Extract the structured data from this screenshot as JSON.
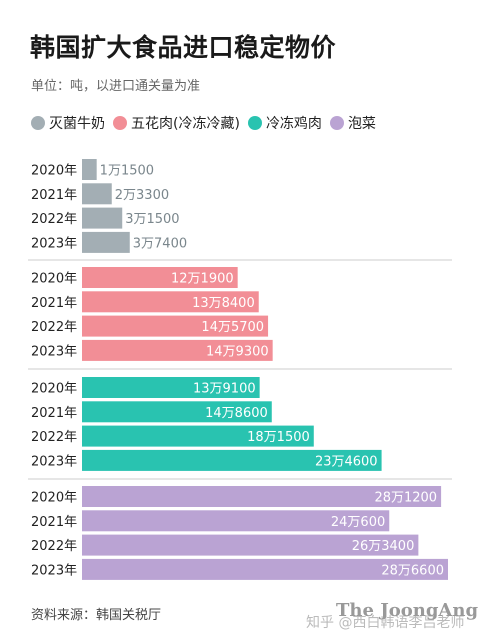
{
  "header": {
    "title": "韩国扩大食品进口稳定物价",
    "unit": "单位：吨，以进口通关量为准"
  },
  "colors": {
    "milk": "#a3aeb4",
    "pork": "#f28e96",
    "chicken": "#29c3b0",
    "kimchi": "#baa3d3",
    "label_on_bar": "#ffffff",
    "label_off_bar": "#7a868c",
    "separator": "#cccccc"
  },
  "chart_data": {
    "type": "bar",
    "orientation": "horizontal",
    "categories": [
      "2020年",
      "2021年",
      "2022年",
      "2023年"
    ],
    "series": [
      {
        "name": "灭菌牛奶",
        "color_key": "milk",
        "values": [
          11500,
          23300,
          31500,
          37400
        ],
        "labels": [
          "1万1500",
          "2万3300",
          "3万1500",
          "3万7400"
        ]
      },
      {
        "name": "五花肉(冷冻冷藏)",
        "color_key": "pork",
        "values": [
          121900,
          138400,
          145700,
          149300
        ],
        "labels": [
          "12万1900",
          "13万8400",
          "14万5700",
          "14万9300"
        ]
      },
      {
        "name": "冷冻鸡肉",
        "color_key": "chicken",
        "values": [
          139100,
          148600,
          181500,
          234600
        ],
        "labels": [
          "13万9100",
          "14万8600",
          "18万1500",
          "23万4600"
        ]
      },
      {
        "name": "泡菜",
        "color_key": "kimchi",
        "values": [
          281200,
          240600,
          263400,
          286600
        ],
        "labels": [
          "28万1200",
          "24万600",
          "26万3400",
          "28万6600"
        ]
      }
    ]
  },
  "footer": {
    "source": "资料来源：韩国关税厅",
    "brand": "The JoongAng",
    "watermark": "知乎 @西白韩语李吕老师"
  }
}
